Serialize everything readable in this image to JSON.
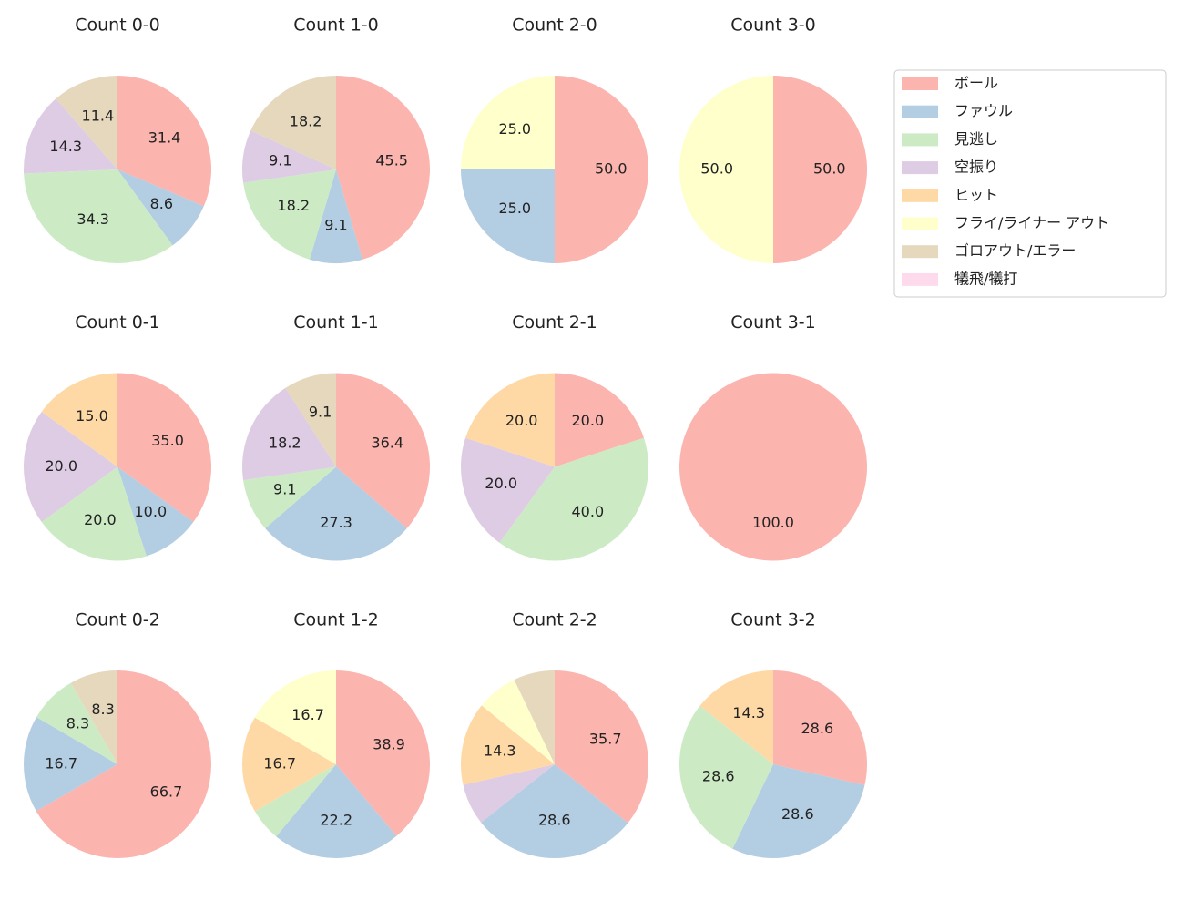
{
  "chart_data": [
    {
      "type": "pie",
      "title": "Count 0-0",
      "categories": [
        "ボール",
        "ファウル",
        "見逃し",
        "空振り",
        "ゴロアウト/エラー"
      ],
      "values": [
        31.4,
        8.6,
        34.3,
        14.3,
        11.4
      ],
      "value_labels": [
        "31.4",
        "8.6",
        "34.3",
        "14.3",
        "11.4"
      ],
      "colors": [
        "#fbb4ae",
        "#b3cde3",
        "#ccebc5",
        "#decbe4",
        "#e5d8bd"
      ]
    },
    {
      "type": "pie",
      "title": "Count 1-0",
      "categories": [
        "ボール",
        "ファウル",
        "見逃し",
        "空振り",
        "ゴロアウト/エラー"
      ],
      "values": [
        45.5,
        9.1,
        18.2,
        9.1,
        18.2
      ],
      "value_labels": [
        "45.5",
        "9.1",
        "18.2",
        "9.1",
        "18.2"
      ],
      "colors": [
        "#fbb4ae",
        "#b3cde3",
        "#ccebc5",
        "#decbe4",
        "#e5d8bd"
      ]
    },
    {
      "type": "pie",
      "title": "Count 2-0",
      "categories": [
        "ボール",
        "ファウル",
        "フライ/ライナー アウト"
      ],
      "values": [
        50,
        25,
        25
      ],
      "value_labels": [
        "50.0",
        "25.0",
        "25.0"
      ],
      "colors": [
        "#fbb4ae",
        "#b3cde3",
        "#ffffcc"
      ]
    },
    {
      "type": "pie",
      "title": "Count 3-0",
      "categories": [
        "ボール",
        "フライ/ライナー アウト"
      ],
      "values": [
        50,
        50
      ],
      "value_labels": [
        "50.0",
        "50.0"
      ],
      "colors": [
        "#fbb4ae",
        "#ffffcc"
      ]
    },
    {
      "type": "pie",
      "title": "Count 0-1",
      "categories": [
        "ボール",
        "ファウル",
        "見逃し",
        "空振り",
        "ヒット"
      ],
      "values": [
        35,
        10,
        20,
        20,
        15
      ],
      "value_labels": [
        "35.0",
        "10.0",
        "20.0",
        "20.0",
        "15.0"
      ],
      "colors": [
        "#fbb4ae",
        "#b3cde3",
        "#ccebc5",
        "#decbe4",
        "#fed9a6"
      ]
    },
    {
      "type": "pie",
      "title": "Count 1-1",
      "categories": [
        "ボール",
        "ファウル",
        "見逃し",
        "空振り",
        "ゴロアウト/エラー"
      ],
      "values": [
        36.4,
        27.3,
        9.1,
        18.2,
        9.1
      ],
      "value_labels": [
        "36.4",
        "27.3",
        "9.1",
        "18.2",
        "9.1"
      ],
      "colors": [
        "#fbb4ae",
        "#b3cde3",
        "#ccebc5",
        "#decbe4",
        "#e5d8bd"
      ]
    },
    {
      "type": "pie",
      "title": "Count 2-1",
      "categories": [
        "ボール",
        "見逃し",
        "空振り",
        "ヒット"
      ],
      "values": [
        20,
        40,
        20,
        20
      ],
      "value_labels": [
        "20.0",
        "40.0",
        "20.0",
        "20.0"
      ],
      "colors": [
        "#fbb4ae",
        "#ccebc5",
        "#decbe4",
        "#fed9a6"
      ]
    },
    {
      "type": "pie",
      "title": "Count 3-1",
      "categories": [
        "ボール"
      ],
      "values": [
        100
      ],
      "value_labels": [
        "100.0"
      ],
      "colors": [
        "#fbb4ae"
      ]
    },
    {
      "type": "pie",
      "title": "Count 0-2",
      "categories": [
        "ボール",
        "ファウル",
        "見逃し",
        "ゴロアウト/エラー"
      ],
      "values": [
        66.7,
        16.7,
        8.3,
        8.3
      ],
      "value_labels": [
        "66.7",
        "16.7",
        "8.3",
        "8.3"
      ],
      "colors": [
        "#fbb4ae",
        "#b3cde3",
        "#ccebc5",
        "#e5d8bd"
      ]
    },
    {
      "type": "pie",
      "title": "Count 1-2",
      "categories": [
        "ボール",
        "ファウル",
        "見逃し",
        "ヒット",
        "フライ/ライナー アウト"
      ],
      "values": [
        38.9,
        22.2,
        5.6,
        16.7,
        16.7
      ],
      "value_labels": [
        "38.9",
        "22.2",
        null,
        "16.7",
        "16.7"
      ],
      "colors": [
        "#fbb4ae",
        "#b3cde3",
        "#ccebc5",
        "#fed9a6",
        "#ffffcc"
      ]
    },
    {
      "type": "pie",
      "title": "Count 2-2",
      "categories": [
        "ボール",
        "ファウル",
        "空振り",
        "ヒット",
        "フライ/ライナー アウト",
        "ゴロアウト/エラー"
      ],
      "values": [
        35.7,
        28.6,
        7.1,
        14.3,
        7.1,
        7.1
      ],
      "value_labels": [
        "35.7",
        "28.6",
        null,
        "14.3",
        null,
        null
      ],
      "colors": [
        "#fbb4ae",
        "#b3cde3",
        "#decbe4",
        "#fed9a6",
        "#ffffcc",
        "#e5d8bd"
      ]
    },
    {
      "type": "pie",
      "title": "Count 3-2",
      "categories": [
        "ボール",
        "ファウル",
        "見逃し",
        "ヒット"
      ],
      "values": [
        28.6,
        28.6,
        28.6,
        14.3
      ],
      "value_labels": [
        "28.6",
        "28.6",
        "28.6",
        "14.3"
      ],
      "colors": [
        "#fbb4ae",
        "#b3cde3",
        "#ccebc5",
        "#fed9a6"
      ]
    }
  ],
  "legend": {
    "position": "upper right",
    "labels": [
      "ボール",
      "ファウル",
      "見逃し",
      "空振り",
      "ヒット",
      "フライ/ライナー アウト",
      "ゴロアウト/エラー",
      "犠飛/犠打"
    ],
    "colors": [
      "#fbb4ae",
      "#b3cde3",
      "#ccebc5",
      "#decbe4",
      "#fed9a6",
      "#ffffcc",
      "#e5d8bd",
      "#fddaec"
    ]
  }
}
